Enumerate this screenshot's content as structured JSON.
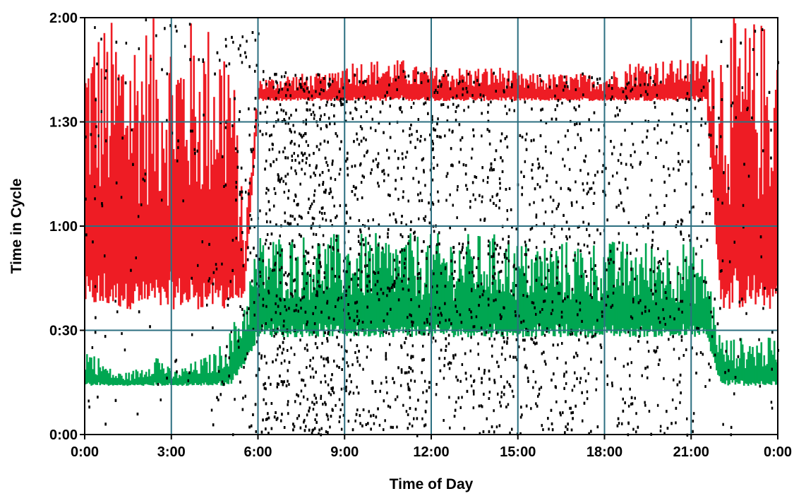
{
  "chart_data": {
    "type": "scatter",
    "xlabel": "Time of Day",
    "ylabel": "Time in Cycle",
    "x_ticks": [
      "0:00",
      "3:00",
      "6:00",
      "9:00",
      "12:00",
      "15:00",
      "18:00",
      "21:00",
      "0:00"
    ],
    "y_ticks": [
      "0:00",
      "0:30",
      "1:00",
      "1:30",
      "2:00"
    ],
    "xlim_hours": [
      0,
      24
    ],
    "ylim_minutes": [
      0,
      120
    ],
    "grid": true,
    "colors": {
      "grid": "#2c6f80",
      "upper_band": "#ee1c24",
      "lower_band": "#00a651",
      "points": "#000000"
    },
    "series": [
      {
        "color": "#ee1c24",
        "x_hours": [
          0,
          0.5,
          1,
          1.5,
          2,
          2.5,
          3,
          3.5,
          4,
          4.5,
          5,
          5.5,
          6,
          6.5,
          7,
          7.5,
          8,
          8.5,
          9,
          9.5,
          10,
          10.5,
          11,
          11.5,
          12,
          12.5,
          13,
          13.5,
          14,
          14.5,
          15,
          15.5,
          16,
          16.5,
          17,
          17.5,
          18,
          18.5,
          19,
          19.5,
          20,
          20.5,
          21,
          21.5,
          22,
          22.5,
          23,
          23.5,
          24
        ],
        "y_low_minutes": [
          36,
          36,
          36,
          36,
          36,
          36,
          36,
          36,
          36,
          36,
          36,
          40,
          96,
          96,
          96,
          96,
          96,
          96,
          96,
          96,
          96,
          96,
          96,
          96,
          96,
          96,
          96,
          96,
          96,
          96,
          96,
          96,
          96,
          96,
          96,
          96,
          96,
          96,
          96,
          96,
          96,
          96,
          96,
          96,
          36,
          36,
          36,
          36,
          36
        ],
        "y_high_minutes": [
          120,
          120,
          120,
          120,
          120,
          120,
          120,
          120,
          120,
          120,
          120,
          60,
          103,
          103,
          104,
          104,
          104,
          104,
          108,
          108,
          108,
          108,
          108,
          106,
          106,
          106,
          106,
          106,
          106,
          106,
          104,
          104,
          104,
          104,
          104,
          104,
          104,
          106,
          108,
          108,
          108,
          108,
          108,
          110,
          120,
          120,
          120,
          120,
          120
        ]
      },
      {
        "color": "#00a651",
        "x_hours": [
          0,
          0.5,
          1,
          1.5,
          2,
          2.5,
          3,
          3.5,
          4,
          4.5,
          5,
          5.5,
          6,
          6.5,
          7,
          7.5,
          8,
          8.5,
          9,
          9.5,
          10,
          10.5,
          11,
          11.5,
          12,
          12.5,
          13,
          13.5,
          14,
          14.5,
          15,
          15.5,
          16,
          16.5,
          17,
          17.5,
          18,
          18.5,
          19,
          19.5,
          20,
          20.5,
          21,
          21.5,
          22,
          22.5,
          23,
          23.5,
          24
        ],
        "y_low_minutes": [
          14,
          14,
          14,
          14,
          14,
          14,
          14,
          14,
          14,
          14,
          14,
          20,
          28,
          28,
          28,
          28,
          28,
          28,
          28,
          28,
          28,
          28,
          28,
          28,
          28,
          28,
          28,
          28,
          28,
          28,
          28,
          28,
          28,
          28,
          28,
          28,
          28,
          28,
          28,
          28,
          28,
          28,
          28,
          28,
          14,
          14,
          14,
          14,
          14
        ],
        "y_high_minutes": [
          26,
          22,
          18,
          18,
          20,
          24,
          18,
          20,
          22,
          24,
          30,
          40,
          58,
          58,
          58,
          58,
          58,
          58,
          58,
          58,
          58,
          58,
          58,
          58,
          58,
          58,
          58,
          58,
          58,
          58,
          56,
          56,
          56,
          56,
          56,
          56,
          56,
          56,
          56,
          56,
          56,
          56,
          56,
          50,
          28,
          28,
          28,
          28,
          28
        ]
      },
      {
        "color": "#000000",
        "x_hours": [
          0,
          0.5,
          1,
          1.5,
          2,
          2.5,
          3,
          3.5,
          4,
          4.5,
          5,
          5.5,
          6,
          6.5,
          7,
          7.5,
          8,
          8.5,
          9,
          9.5,
          10,
          10.5,
          11,
          11.5,
          12,
          12.5,
          13,
          13.5,
          14,
          14.5,
          15,
          15.5,
          16,
          16.5,
          17,
          17.5,
          18,
          18.5,
          19,
          19.5,
          20,
          20.5,
          21,
          21.5,
          22,
          22.5,
          23,
          23.5,
          24
        ],
        "relative_density": [
          0.1,
          0.1,
          0.1,
          0.1,
          0.1,
          0.1,
          0.1,
          0.1,
          0.12,
          0.15,
          0.2,
          0.35,
          0.55,
          0.8,
          0.92,
          0.95,
          0.9,
          0.75,
          0.65,
          0.6,
          0.6,
          0.6,
          0.6,
          0.58,
          0.58,
          0.55,
          0.55,
          0.55,
          0.55,
          0.55,
          0.5,
          0.5,
          0.5,
          0.48,
          0.48,
          0.45,
          0.45,
          0.42,
          0.4,
          0.38,
          0.35,
          0.32,
          0.3,
          0.25,
          0.12,
          0.1,
          0.1,
          0.1,
          0.1
        ]
      }
    ]
  }
}
